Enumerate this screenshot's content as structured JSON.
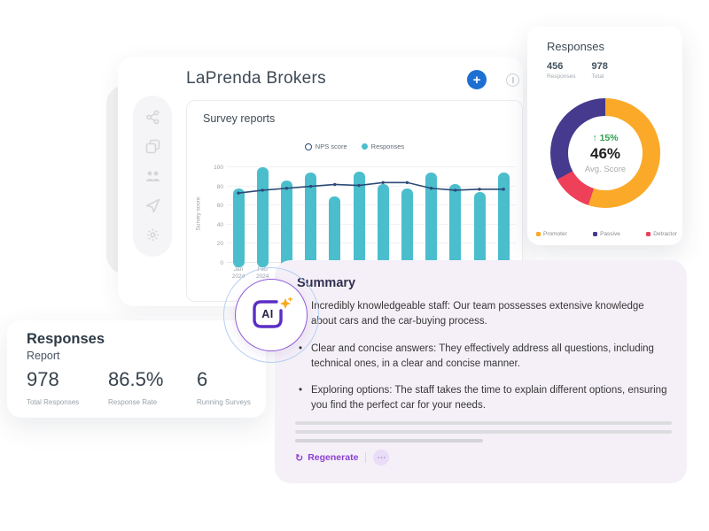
{
  "header": {
    "title": "LaPrenda Brokers"
  },
  "toolbar": {
    "add_label": "+"
  },
  "sidebar": {
    "icons": [
      "share-nodes-icon",
      "copy-icon",
      "users-icon",
      "send-icon",
      "gear-icon"
    ]
  },
  "survey_panel": {
    "title": "Survey reports"
  },
  "chart_data": [
    {
      "type": "bar",
      "title": "Survey reports",
      "xlabel": "",
      "ylabel": "Survey score",
      "ylim": [
        0,
        100
      ],
      "yticks": [
        0,
        20,
        40,
        60,
        80,
        100
      ],
      "grid": true,
      "legend_position": "top",
      "categories": [
        "Jan 2024",
        "Feb 2024",
        "",
        "",
        "",
        "",
        "",
        "",
        "",
        "",
        "",
        ""
      ],
      "series": [
        {
          "name": "NPS score",
          "type": "line",
          "color": "#2b4a78",
          "values": [
            73,
            76,
            78,
            80,
            82,
            81,
            84,
            84,
            78,
            76,
            77,
            77
          ]
        },
        {
          "name": "Responses",
          "type": "bar",
          "color": "#4bbecd",
          "values": [
            78,
            100,
            86,
            94,
            69,
            95,
            82,
            78,
            94,
            82,
            74,
            94
          ]
        }
      ]
    },
    {
      "type": "pie",
      "title": "Responses",
      "legend_position": "bottom",
      "segments": [
        {
          "label": "Promoter",
          "value": 55,
          "color": "#fba928"
        },
        {
          "label": "Passive",
          "value": 33,
          "color": "#453a8d"
        },
        {
          "label": "Detractor",
          "value": 12,
          "color": "#ee4058"
        }
      ],
      "clockwise_order": [
        0,
        2,
        1
      ],
      "center": {
        "delta": "↑ 15%",
        "score": "46%",
        "label": "Avg. Score"
      }
    }
  ],
  "responses_card": {
    "title": "Responses",
    "stats": [
      {
        "value": "456",
        "label": "Responses"
      },
      {
        "value": "978",
        "label": "Total"
      }
    ]
  },
  "report_card": {
    "title": "Responses",
    "subtitle": "Report",
    "stats": [
      {
        "value": "978",
        "label": "Total Responses"
      },
      {
        "value": "86.5%",
        "label": "Response Rate"
      },
      {
        "value": "6",
        "label": "Running Surveys"
      }
    ]
  },
  "summary_card": {
    "title": "Summary",
    "bullets": [
      "Incredibly knowledgeable staff: Our team possesses extensive knowledge about cars and the car-buying process.",
      "Clear and concise answers: They effectively address all questions, including technical ones, in a clear and concise manner.",
      "Exploring options: The staff takes the time to explain different options, ensuring you find the perfect car for your needs."
    ],
    "regenerate_label": "Regenerate",
    "regenerate_icon": "↻",
    "more_icon": "⋯"
  },
  "ai_badge": {
    "label": "AI"
  },
  "colors": {
    "accent_blue": "#1d70d2",
    "bar_teal": "#4bbecd",
    "line_navy": "#2b4a78",
    "donut_orange": "#fba928",
    "donut_indigo": "#453a8d",
    "donut_red": "#ee4058",
    "delta_green": "#2fa04d",
    "ai_purple": "#5b2ec5",
    "summary_bg": "#f5f0f8"
  }
}
